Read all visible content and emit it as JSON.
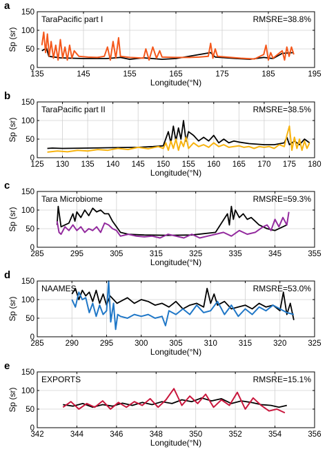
{
  "chart_data": [
    {
      "type": "line",
      "panel": "a",
      "dataset": "TaraPacific part I",
      "rmsre": "RMSRE=38.8%",
      "xlabel": "Longitude(°N)",
      "ylabel": "Sp (sr)",
      "xlim": [
        135,
        195
      ],
      "ylim": [
        0,
        150
      ],
      "xticks": [
        135,
        145,
        155,
        165,
        175,
        185,
        195
      ],
      "yticks": [
        0,
        50,
        100,
        150
      ],
      "grid": true,
      "series": [
        {
          "color": "#000000",
          "x": [
            136.0,
            137.0,
            137.5,
            140,
            145,
            150,
            153,
            155,
            158,
            162,
            165,
            172.5,
            173.5,
            178,
            181,
            184,
            186,
            188,
            190.5
          ],
          "y": [
            45,
            52,
            30,
            26,
            24,
            24,
            27,
            22,
            26,
            22,
            24,
            40,
            28,
            24,
            22,
            27,
            24,
            38,
            40
          ]
        },
        {
          "color": "#F4581C",
          "x": [
            136.0,
            136.4,
            136.8,
            137.2,
            137.6,
            138.0,
            138.5,
            139.0,
            139.5,
            140.0,
            140.5,
            141.0,
            141.5,
            142.0,
            142.5,
            143.0,
            144,
            146,
            148,
            149.5,
            150.2,
            150.8,
            151.4,
            152.0,
            152.6,
            153.0,
            155,
            157,
            158.0,
            158.5,
            159.2,
            160.0,
            160.8,
            161.5,
            162.0,
            165,
            168,
            170,
            172.0,
            172.5,
            173.0,
            173.5,
            174.0,
            176,
            179,
            182,
            184.0,
            184.5,
            185.0,
            185.5,
            186.0,
            188.0,
            188.5,
            189.0,
            189.5,
            190.0,
            190.5
          ],
          "y": [
            60,
            95,
            40,
            90,
            30,
            70,
            25,
            60,
            20,
            75,
            25,
            55,
            20,
            60,
            25,
            45,
            30,
            28,
            27,
            30,
            55,
            20,
            70,
            25,
            80,
            30,
            27,
            26,
            25,
            50,
            20,
            55,
            25,
            45,
            28,
            27,
            27,
            28,
            30,
            65,
            25,
            50,
            30,
            28,
            25,
            23,
            35,
            60,
            20,
            40,
            25,
            45,
            20,
            55,
            30,
            55,
            35
          ]
        }
      ]
    },
    {
      "type": "line",
      "panel": "b",
      "dataset": "TaraPacific part II",
      "rmsre": "RMSRE=38.5%",
      "xlabel": "Longitude(°N)",
      "ylabel": "Sp (sr)",
      "xlim": [
        125,
        180
      ],
      "ylim": [
        0,
        150
      ],
      "xticks": [
        125,
        130,
        135,
        140,
        145,
        150,
        155,
        160,
        165,
        170,
        175,
        180
      ],
      "yticks": [
        0,
        50,
        100,
        150
      ],
      "grid": true,
      "series": [
        {
          "color": "#000000",
          "x": [
            127.0,
            128,
            130,
            135,
            140,
            145,
            148,
            150,
            151.0,
            151.5,
            152.0,
            152.5,
            153.0,
            153.5,
            154.0,
            154.5,
            155.0,
            156,
            157,
            158,
            159,
            160,
            161,
            162,
            163,
            164,
            165,
            167,
            170,
            172,
            174.0,
            174.5,
            175.0,
            176,
            177,
            178,
            179.0
          ],
          "y": [
            25,
            26,
            25,
            26,
            27,
            28,
            30,
            32,
            70,
            40,
            85,
            45,
            80,
            50,
            100,
            45,
            70,
            60,
            45,
            55,
            45,
            60,
            40,
            50,
            40,
            45,
            42,
            38,
            35,
            35,
            40,
            55,
            35,
            45,
            35,
            50,
            40
          ]
        },
        {
          "color": "#F7B30F",
          "x": [
            127.0,
            129,
            131,
            133,
            135,
            137,
            139,
            141,
            143,
            145,
            147,
            149,
            150.0,
            150.5,
            151.0,
            151.5,
            152.0,
            152.5,
            153.0,
            153.5,
            154.0,
            154.5,
            155.0,
            156,
            157,
            158,
            159,
            160,
            161,
            162,
            163,
            164,
            165,
            166,
            167,
            168,
            169,
            170,
            171,
            172,
            173,
            174.0,
            174.5,
            175.0,
            175.5,
            176.0,
            176.5,
            177.0,
            177.5,
            178.0,
            178.5,
            179.0
          ],
          "y": [
            15,
            18,
            16,
            20,
            18,
            22,
            20,
            25,
            22,
            28,
            24,
            30,
            25,
            40,
            20,
            45,
            25,
            50,
            20,
            45,
            30,
            55,
            25,
            40,
            30,
            35,
            28,
            40,
            30,
            35,
            28,
            30,
            32,
            28,
            30,
            25,
            30,
            28,
            30,
            25,
            35,
            30,
            60,
            85,
            20,
            55,
            25,
            50,
            20,
            45,
            25,
            40
          ]
        }
      ]
    },
    {
      "type": "line",
      "panel": "c",
      "dataset": "Tara Microbiome",
      "rmsre": "RMSRE=59.3%",
      "xlabel": "Longitude(°N)",
      "ylabel": "Sp (sr)",
      "xlim": [
        285,
        355
      ],
      "ylim": [
        0,
        150
      ],
      "xticks": [
        285,
        295,
        305,
        315,
        325,
        335,
        345,
        355
      ],
      "yticks": [
        0,
        50,
        100,
        150
      ],
      "grid": true,
      "series": [
        {
          "color": "#000000",
          "x": [
            290.0,
            290.3,
            291,
            292,
            293,
            294.0,
            294.5,
            295.0,
            296,
            297,
            298.0,
            299.0,
            300,
            301,
            302,
            303,
            304,
            305,
            306,
            308,
            312,
            318,
            324,
            330,
            333.0,
            333.5,
            334.0,
            334.5,
            335.0,
            336,
            337,
            338,
            339,
            340,
            341,
            342,
            343,
            345,
            348
          ],
          "y": [
            60,
            110,
            55,
            60,
            65,
            90,
            70,
            95,
            80,
            100,
            85,
            105,
            95,
            100,
            90,
            90,
            70,
            55,
            40,
            35,
            33,
            32,
            33,
            40,
            90,
            60,
            110,
            75,
            100,
            80,
            90,
            75,
            80,
            70,
            60,
            55,
            50,
            45,
            60
          ]
        },
        {
          "color": "#932A9E",
          "x": [
            290.0,
            290.5,
            291,
            292,
            293,
            294,
            295,
            296,
            297,
            298,
            299,
            300,
            301,
            302,
            303,
            304,
            305,
            306,
            308,
            310,
            312,
            314,
            316,
            318,
            320,
            322,
            324,
            326,
            328,
            330,
            332,
            334,
            336,
            338,
            340,
            342,
            343,
            344,
            345,
            346,
            347,
            348,
            348.5
          ],
          "y": [
            70,
            40,
            35,
            55,
            45,
            60,
            45,
            55,
            40,
            50,
            45,
            55,
            40,
            65,
            60,
            50,
            45,
            30,
            35,
            30,
            28,
            30,
            25,
            35,
            30,
            25,
            35,
            25,
            30,
            35,
            40,
            30,
            45,
            35,
            40,
            55,
            60,
            45,
            75,
            55,
            80,
            60,
            95
          ]
        }
      ]
    },
    {
      "type": "line",
      "panel": "d",
      "dataset": "NAAMES",
      "rmsre": "RMSRE=53.0%",
      "xlabel": "Longitude(°N)",
      "ylabel": "Sp (sr)",
      "xlim": [
        285,
        325
      ],
      "ylim": [
        0,
        150
      ],
      "xticks": [
        285,
        290,
        295,
        300,
        305,
        310,
        315,
        320,
        325
      ],
      "yticks": [
        0,
        50,
        100,
        150
      ],
      "grid": true,
      "series": [
        {
          "color": "#000000",
          "x": [
            290.0,
            290.5,
            291.0,
            291.5,
            292.0,
            292.5,
            293.0,
            293.5,
            294.0,
            294.5,
            295.0,
            295.5,
            296.0,
            296.5,
            297.0,
            298,
            299,
            300,
            301,
            302,
            303,
            304,
            305,
            306,
            307,
            308,
            309,
            309.5,
            310.0,
            310.5,
            311,
            312,
            313,
            314,
            315,
            316,
            317,
            318,
            319,
            320,
            320.5,
            321.0,
            321.5,
            322.0
          ],
          "y": [
            115,
            130,
            100,
            125,
            110,
            120,
            95,
            125,
            90,
            115,
            85,
            110,
            100,
            90,
            95,
            105,
            90,
            100,
            95,
            85,
            90,
            80,
            95,
            75,
            85,
            90,
            80,
            130,
            90,
            115,
            85,
            95,
            75,
            80,
            85,
            75,
            90,
            80,
            85,
            70,
            120,
            60,
            90,
            45
          ]
        },
        {
          "color": "#1F77C7",
          "x": [
            290.0,
            290.5,
            291.0,
            291.5,
            292.0,
            292.5,
            293.0,
            293.5,
            294.0,
            294.5,
            295.0,
            295.3,
            295.6,
            296.0,
            296.3,
            296.6,
            297.0,
            298,
            299,
            300,
            301,
            302,
            303,
            303.5,
            304,
            305,
            306,
            307,
            308,
            309,
            310,
            311,
            312,
            313,
            314,
            315,
            316,
            317,
            318,
            319,
            320,
            321,
            322
          ],
          "y": [
            100,
            80,
            120,
            100,
            105,
            65,
            90,
            55,
            85,
            60,
            70,
            150,
            40,
            90,
            20,
            60,
            55,
            50,
            60,
            55,
            60,
            50,
            55,
            30,
            70,
            60,
            75,
            60,
            85,
            65,
            70,
            95,
            60,
            85,
            55,
            75,
            60,
            80,
            70,
            85,
            75,
            65,
            60
          ]
        }
      ]
    },
    {
      "type": "line",
      "panel": "e",
      "dataset": "EXPORTS",
      "rmsre": "RMSRE=15.1%",
      "xlabel": "Longitude(°N)",
      "ylabel": "Sp (sr)",
      "xlim": [
        342,
        356
      ],
      "ylim": [
        0,
        150
      ],
      "xticks": [
        342,
        344,
        346,
        348,
        350,
        352,
        354,
        356
      ],
      "yticks": [
        0,
        50,
        100,
        150
      ],
      "grid": true,
      "series": [
        {
          "color": "#000000",
          "x": [
            343.3,
            343.8,
            344.3,
            344.8,
            345.3,
            345.8,
            346.3,
            346.8,
            347.3,
            347.8,
            348.3,
            348.8,
            349.3,
            349.8,
            350.3,
            350.8,
            351.3,
            351.8,
            352.3,
            352.8,
            353.3,
            353.8,
            354.2,
            354.6
          ],
          "y": [
            62,
            58,
            65,
            55,
            62,
            58,
            66,
            60,
            68,
            62,
            70,
            65,
            75,
            70,
            80,
            72,
            78,
            65,
            72,
            68,
            62,
            60,
            55,
            60
          ]
        },
        {
          "color": "#C8163C",
          "x": [
            343.3,
            343.7,
            344.1,
            344.5,
            344.9,
            345.3,
            345.7,
            346.1,
            346.5,
            346.9,
            347.3,
            347.7,
            348.1,
            348.5,
            348.9,
            349.3,
            349.7,
            350.1,
            350.5,
            350.9,
            351.3,
            351.7,
            352.1,
            352.5,
            352.9,
            353.3,
            353.7,
            354.1,
            354.5
          ],
          "y": [
            55,
            70,
            50,
            65,
            55,
            72,
            50,
            68,
            55,
            70,
            60,
            78,
            55,
            75,
            105,
            60,
            85,
            65,
            90,
            55,
            75,
            60,
            95,
            50,
            80,
            60,
            45,
            50,
            40
          ]
        }
      ]
    }
  ]
}
